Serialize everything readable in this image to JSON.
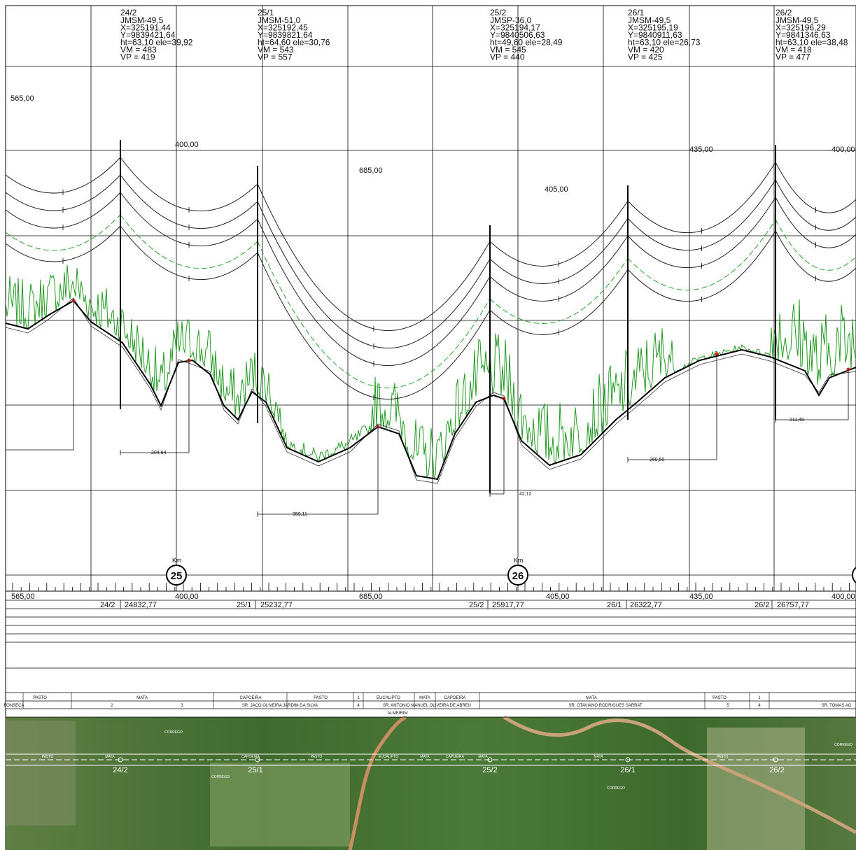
{
  "towers": [
    {
      "name": "24/2",
      "lines": [
        "JMSM-49,5",
        "X=325191,44",
        "Y=9839421,64",
        "ht=63,10 ele=39,92",
        "VM = 483",
        "VP = 419"
      ],
      "station": "24832,77"
    },
    {
      "name": "25/1",
      "lines": [
        "JMSM-51,0",
        "X=325192,45",
        "Y=9839821,64",
        "ht=64,60 ele=30,76",
        "VM = 543",
        "VP = 557"
      ],
      "station": "25232,77"
    },
    {
      "name": "25/2",
      "lines": [
        "JMSP-36,0",
        "X=325194,17",
        "Y=9840506,63",
        "ht=49,60 ele=28,49",
        "VM = 545",
        "VP = 440"
      ],
      "station": "25917,77"
    },
    {
      "name": "26/1",
      "lines": [
        "JMSM-49,5",
        "X=325195,19",
        "Y=9840911,63",
        "ht=63,10 ele=26,73",
        "VM = 420",
        "VP = 425"
      ],
      "station": "26322,77"
    },
    {
      "name": "26/2",
      "lines": [
        "JMSM-49,5",
        "X=325196,29",
        "Y=9841346,63",
        "ht=63,10 ele=38,48",
        "VM = 418",
        "VP = 477"
      ],
      "station": "26757,77"
    }
  ],
  "spans": [
    "565,00",
    "400,00",
    "685,00",
    "405,00",
    "435,00",
    "400,00"
  ],
  "dimensions": [
    "204,64",
    "359,11",
    "42,12",
    "260,50",
    "211,49"
  ],
  "km_label": "Km",
  "km_markers": [
    "25",
    "26"
  ],
  "land_use": [
    "PASTO",
    "MATA",
    "CAPOEIRA",
    "PASTO",
    "1",
    "EUCALIPTO",
    "MATA",
    "CAPOEIRA",
    "MATA",
    "PASTO",
    "1"
  ],
  "owners": [
    "FONSECA",
    "2",
    "3",
    "SR. JACO OLIVEIRA JARDIM DA SILVA",
    "4",
    "SR. ANTONIO MANUEL OLIVEIRA DE ABREU",
    "SR. OTAVIANO RODRIGUES SARRAT",
    "5",
    "4",
    "SR. TOMAS AG"
  ],
  "municipality": "ALMEIRIM",
  "aerial_labels": [
    "PASTO",
    "MATA",
    "CAPOEIRA",
    "PASTO",
    "EUCALIPTO",
    "MATA",
    "CAPOEIRA",
    "MATA",
    "MATA",
    "PASTO",
    "24/2",
    "25/1",
    "25/2",
    "26/1",
    "26/2",
    "CORREGO",
    "CORREGO",
    "CORREGO",
    "CORREGO"
  ]
}
